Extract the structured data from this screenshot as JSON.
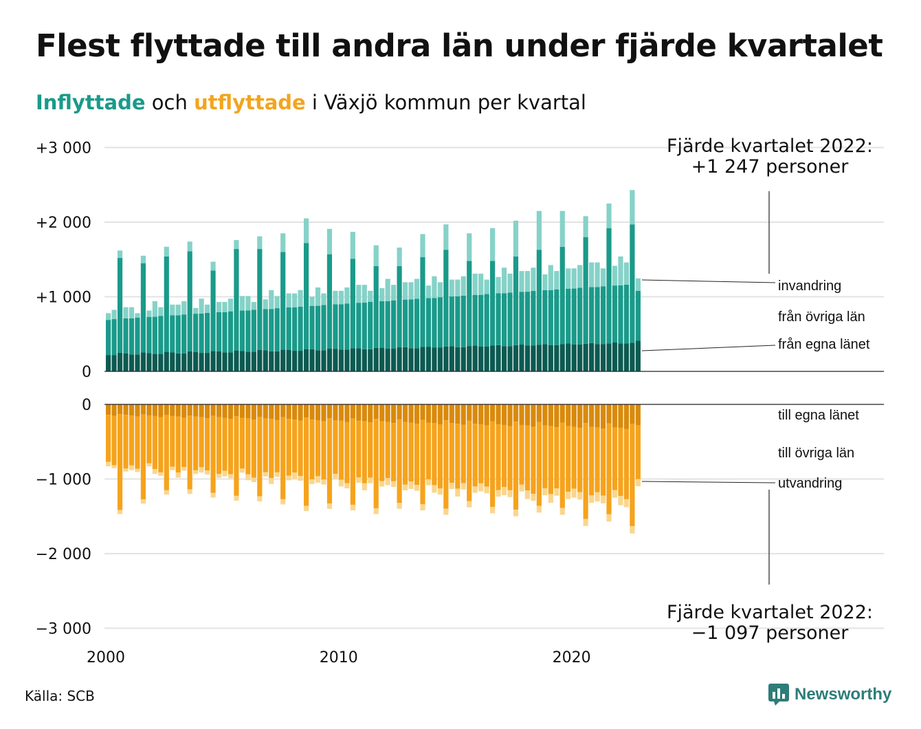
{
  "header": {
    "title": "Flest flyttade till andra län under fjärde kvartalet",
    "subtitle_in": "Inflyttade",
    "subtitle_mid": " och ",
    "subtitle_out": "utflyttade",
    "subtitle_rest": " i Växjö kommun per kvartal"
  },
  "footer": {
    "source": "Källa: SCB",
    "brand": "Newsworthy"
  },
  "colors": {
    "in_own": "#0c5a51",
    "in_other": "#1a9a8a",
    "in_immig": "#86d2c8",
    "out_own": "#d98a0c",
    "out_other": "#f6a31c",
    "out_emig": "#fad68f"
  },
  "chart_data": {
    "type": "bar",
    "stacked": true,
    "x_start": "2000 Q1",
    "x_end": "2022 Q4",
    "xticks": [
      2000,
      2010,
      2020
    ],
    "grid": true,
    "top": {
      "ylim": [
        0,
        3000
      ],
      "ytick_values": [
        0,
        1000,
        2000,
        3000
      ],
      "ytick_labels": [
        "0",
        "+1 000",
        "+2 000",
        "+3 000"
      ],
      "series_labels": [
        "från egna länet",
        "från övriga län",
        "invandring"
      ],
      "annotation_line1": "Fjärde kvartalet 2022:",
      "annotation_line2": "+1 247 personer",
      "last_quarter_total": 1247,
      "q3_peak_totals": [
        1620,
        1550,
        1670,
        1740,
        1470,
        1760,
        1810,
        1850,
        2050,
        1910,
        1870,
        1690,
        1660,
        1840,
        1970,
        1850,
        1920,
        2020,
        2150,
        2150,
        2080,
        2250,
        2430
      ],
      "q3_other_share": [
        1520,
        1450,
        1540,
        1610,
        1350,
        1640,
        1640,
        1600,
        1720,
        1570,
        1510,
        1410,
        1410,
        1530,
        1630,
        1480,
        1480,
        1540,
        1630,
        1670,
        1800,
        1920,
        1970
      ]
    },
    "bottom": {
      "ylim": [
        -3000,
        0
      ],
      "ytick_values": [
        0,
        -1000,
        -2000,
        -3000
      ],
      "ytick_labels": [
        "0",
        "−1 000",
        "−2 000",
        "−3 000"
      ],
      "series_labels": [
        "till egna länet",
        "till övriga län",
        "utvandring"
      ],
      "annotation_line1": "Fjärde kvartalet 2022:",
      "annotation_line2": "−1 097 personer",
      "last_quarter_total": -1097,
      "q3_peak_totals": [
        -1470,
        -1330,
        -1210,
        -1200,
        -1250,
        -1290,
        -1300,
        -1340,
        -1430,
        -1400,
        -1420,
        -1470,
        -1400,
        -1420,
        -1480,
        -1380,
        -1460,
        -1500,
        -1450,
        -1480,
        -1630,
        -1570,
        -1730
      ]
    }
  }
}
